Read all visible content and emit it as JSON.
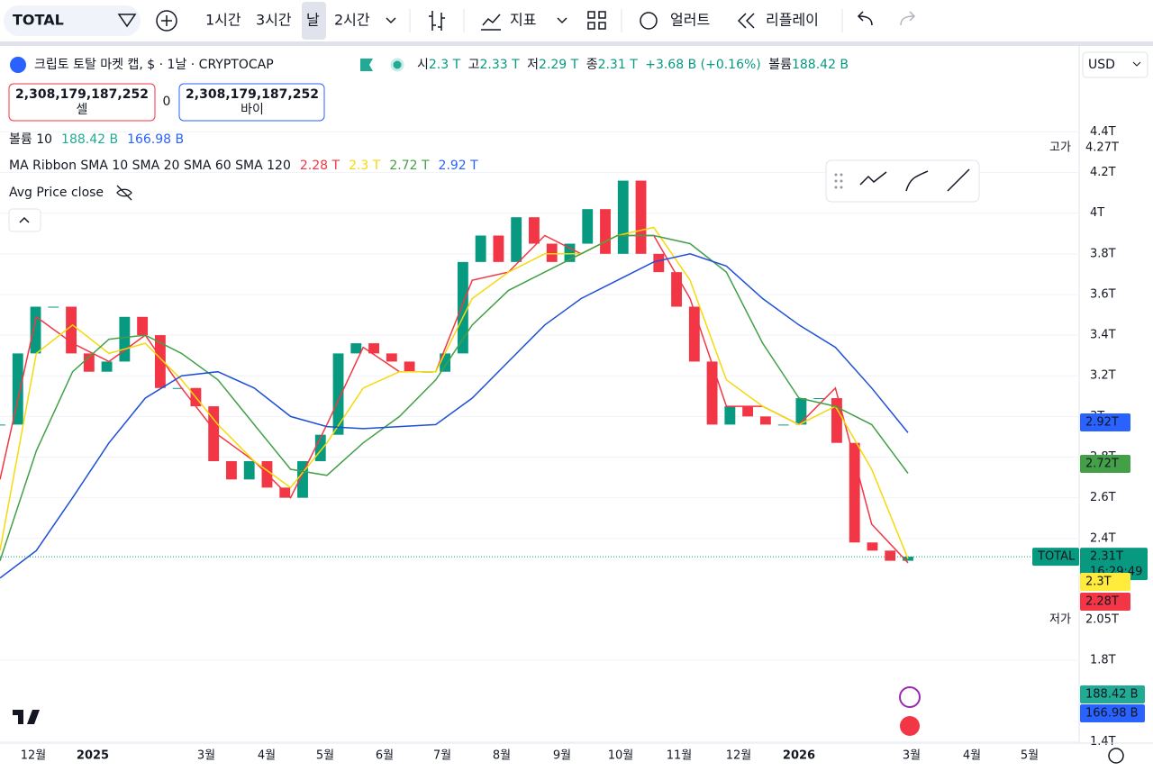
{
  "toolbar": {
    "symbol": "TOTAL",
    "intervals": [
      "1시간",
      "3시간",
      "날",
      "2시간"
    ],
    "indicators": "지표",
    "alert": "얼러트",
    "replay": "리플레이"
  },
  "legend": {
    "title": "크립토 토탈 마켓 캡, $ · 1날 · CRYPTOCAP",
    "ohlc": [
      {
        "key": "시",
        "value": "2.3 T"
      },
      {
        "key": "고",
        "value": "2.33 T"
      },
      {
        "key": "저",
        "value": "2.29 T"
      },
      {
        "key": "종",
        "value": "2.31 T"
      }
    ],
    "change": "+3.68 B (+0.16%)",
    "volume_key": "볼륨",
    "volume": "188.42 B",
    "sell": {
      "price": "2,308,179,187,252",
      "label": "셀"
    },
    "spread": "0",
    "buy": {
      "price": "2,308,179,187,252",
      "label": "바이"
    },
    "volume_study": {
      "name": "볼륨 10",
      "values": [
        "188.42 B",
        "166.98 B"
      ]
    },
    "ma_study": {
      "name": "MA Ribbon SMA 10 SMA 20 SMA 60 SMA 120",
      "values": [
        "2.28 T",
        "2.3 T",
        "2.72 T",
        "2.92 T"
      ]
    },
    "avg_price": "Avg Price close"
  },
  "currency": "USD",
  "chart_data": {
    "type": "candlestick",
    "closes": [
      2.96,
      3.31,
      3.54,
      3.54,
      3.31,
      3.22,
      3.27,
      3.49,
      3.4,
      3.14,
      3.14,
      3.05,
      2.78,
      2.69,
      2.78,
      2.65,
      2.6,
      2.78,
      2.91,
      3.31,
      3.36,
      3.31,
      3.27,
      3.22,
      3.22,
      3.31,
      3.76,
      3.89,
      3.76,
      3.98,
      3.85,
      3.76,
      3.85,
      4.02,
      3.8,
      4.16,
      3.8,
      3.71,
      3.54,
      3.27,
      2.96,
      3.05,
      3,
      2.96,
      2.96,
      3.09,
      3.09,
      2.87,
      2.38,
      2.34,
      2.29,
      2.31
    ],
    "ylim": [
      1.3,
      4.65
    ],
    "yticks": [
      {
        "value": 4.4,
        "label": "4.4T"
      },
      {
        "value": 4.2,
        "label": "4.2T"
      },
      {
        "value": 4,
        "label": "4T"
      },
      {
        "value": 3.8,
        "label": "3.8T"
      },
      {
        "value": 3.6,
        "label": "3.6T"
      },
      {
        "value": 3.4,
        "label": "3.4T"
      },
      {
        "value": 3.2,
        "label": "3.2T"
      },
      {
        "value": 3,
        "label": "3T"
      },
      {
        "value": 2.8,
        "label": "2.8T"
      },
      {
        "value": 2.6,
        "label": "2.6T"
      },
      {
        "value": 2.4,
        "label": "2.4T"
      },
      {
        "value": 1.8,
        "label": "1.8T"
      },
      {
        "value": 1.4,
        "label": "1.4T"
      }
    ],
    "series": [
      {
        "color": "#f23645",
        "values": [
          2.69,
          3.49,
          3.36,
          3.27,
          3.4,
          3.14,
          2.91,
          2.78,
          2.6,
          2.96,
          3.34,
          3.22,
          3.22,
          3.67,
          3.71,
          3.89,
          3.8,
          3.89,
          3.89,
          3.58,
          3.05,
          3.05,
          2.96,
          3.14,
          2.47,
          2.28
        ]
      },
      {
        "color": "#f5d90a",
        "values": [
          2.34,
          3.31,
          3.45,
          3.31,
          3.36,
          3.18,
          2.96,
          2.78,
          2.65,
          2.87,
          3.14,
          3.22,
          3.22,
          3.58,
          3.71,
          3.8,
          3.8,
          3.89,
          3.93,
          3.67,
          3.18,
          3.05,
          2.96,
          3.05,
          2.74,
          2.3
        ]
      },
      {
        "color": "#43a047",
        "values": [
          2.29,
          2.83,
          3.22,
          3.38,
          3.4,
          3.31,
          3.18,
          2.96,
          2.74,
          2.71,
          2.87,
          3,
          3.18,
          3.45,
          3.62,
          3.71,
          3.8,
          3.89,
          3.89,
          3.85,
          3.71,
          3.36,
          3.09,
          3.05,
          2.96,
          2.72
        ]
      },
      {
        "color": "#1e4fd6",
        "values": [
          2.205,
          2.34,
          2.6,
          2.87,
          3.09,
          3.2,
          3.22,
          3.14,
          3,
          2.95,
          2.94,
          2.95,
          2.96,
          3.09,
          3.27,
          3.45,
          3.58,
          3.67,
          3.76,
          3.8,
          3.74,
          3.58,
          3.45,
          3.34,
          3.14,
          2.92
        ]
      }
    ],
    "x_labels": [
      "12월",
      "2025",
      "3월",
      "4월",
      "5월",
      "6월",
      "7월",
      "8월",
      "9월",
      "10월",
      "11월",
      "12월",
      "2026",
      "3월",
      "4월",
      "5월"
    ],
    "high": {
      "tag": "고가",
      "label": "4.27T"
    },
    "low": {
      "tag": "저가",
      "label": "2.05T"
    },
    "last": {
      "tag": "TOTAL",
      "value": 2.31,
      "label": "2.31T",
      "countdown": "16:29:49"
    },
    "ma_badges": [
      {
        "label": "2.92T",
        "color": "#2962ff"
      },
      {
        "label": "2.72T",
        "color": "#43a047"
      },
      {
        "label": "2.3T",
        "color": "#ffeb3b"
      },
      {
        "label": "2.28T",
        "color": "#f23645"
      }
    ],
    "volume_badges": [
      {
        "label": "188.42 B",
        "color": "#22ab94"
      },
      {
        "label": "166.98 B",
        "color": "#2962ff"
      }
    ]
  }
}
